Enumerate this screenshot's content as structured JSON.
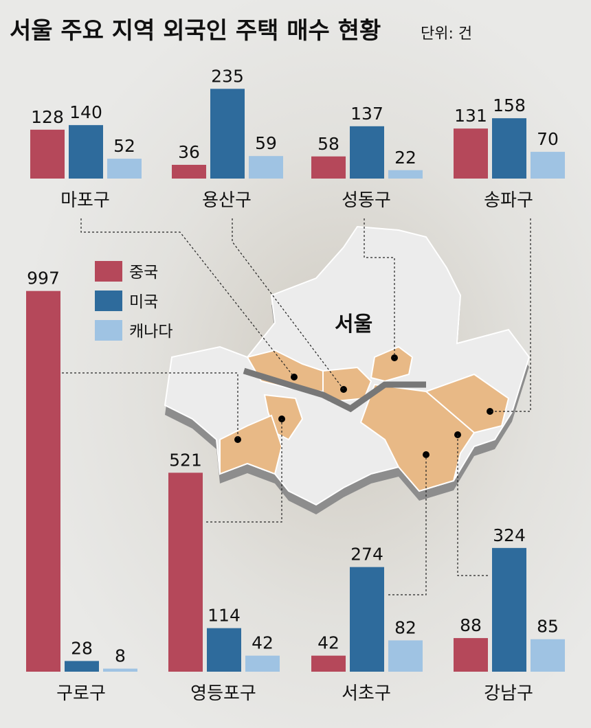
{
  "chart_data": {
    "type": "bar",
    "title": "서울 주요 지역 외국인 주택 매수 현황",
    "subtitle": "단위: 건",
    "map_label": "서울",
    "categories": [
      "마포구",
      "용산구",
      "성동구",
      "송파구",
      "구로구",
      "영등포구",
      "서초구",
      "강남구"
    ],
    "series": [
      {
        "name": "중국",
        "color": "#b5485a",
        "values": [
          128,
          36,
          58,
          131,
          997,
          521,
          42,
          88
        ]
      },
      {
        "name": "미국",
        "color": "#2e6b9c",
        "values": [
          140,
          235,
          137,
          158,
          28,
          114,
          274,
          324
        ]
      },
      {
        "name": "캐나다",
        "color": "#9fc3e3",
        "values": [
          52,
          59,
          22,
          70,
          8,
          42,
          82,
          85
        ]
      }
    ]
  }
}
